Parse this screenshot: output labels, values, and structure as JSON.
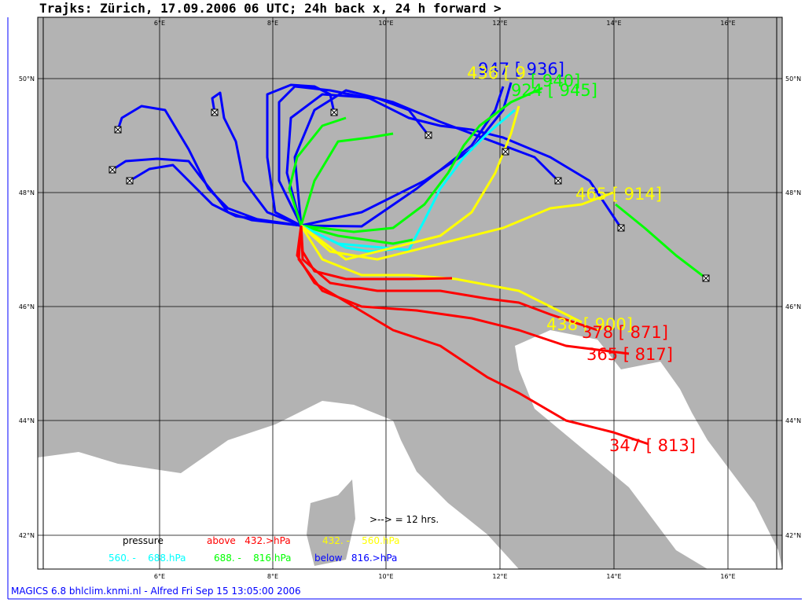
{
  "header": {
    "title": "Trajks: Zürich, 17.09.2006 06 UTC; 24h back x, 24 h forward >"
  },
  "axes": {
    "lat_labels": [
      "50°N",
      "48°N",
      "46°N",
      "44°N",
      "42°N"
    ],
    "lon_labels": [
      "6°E",
      "8°E",
      "10°E",
      "12°E",
      "14°E",
      "16°E"
    ]
  },
  "endpoint_labels": [
    {
      "text": "947 [ 936]",
      "color": "#0000ff"
    },
    {
      "text": "436 [ 9",
      "color": "#ffff00"
    },
    {
      "text": "[ 940]",
      "color": "#00ff00"
    },
    {
      "text": "924 [ 945]",
      "color": "#00ff00"
    },
    {
      "text": "465 [ 914]",
      "color": "#ffff00"
    },
    {
      "text": "438 [ 900]",
      "color": "#ffff00"
    },
    {
      "text": "378 [ 871]",
      "color": "#ff0000"
    },
    {
      "text": "365 [ 817]",
      "color": "#ff0000"
    },
    {
      "text": "347 [ 813]",
      "color": "#ff0000"
    }
  ],
  "legend": {
    "scale_note": ">--> = 12 hrs.",
    "pressure": "pressure",
    "entries": [
      {
        "text": "above   432.>hPa",
        "color": "#ff0000"
      },
      {
        "text": "432. -    560.hPa",
        "color": "#ffff00"
      },
      {
        "text": "560. -    688.hPa",
        "color": "#00ffff"
      },
      {
        "text": "688. -    816.hPa",
        "color": "#00ff00"
      },
      {
        "text": "below   816.>hPa",
        "color": "#0000ff"
      }
    ]
  },
  "footer": "MAGICS 6.8 bhlclim.knmi.nl - Alfred Fri Sep 15 13:05:00 2006"
}
